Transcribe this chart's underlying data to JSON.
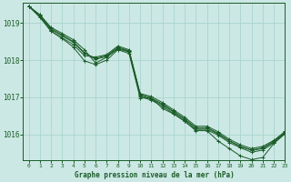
{
  "background_color": "#cce8e4",
  "grid_color": "#aad4ce",
  "line_color": "#1a5c28",
  "title": "Graphe pression niveau de la mer (hPa)",
  "xlim": [
    -0.5,
    23
  ],
  "ylim": [
    1015.3,
    1019.55
  ],
  "yticks": [
    1016,
    1017,
    1018,
    1019
  ],
  "xticks": [
    0,
    1,
    2,
    3,
    4,
    5,
    6,
    7,
    8,
    9,
    10,
    11,
    12,
    13,
    14,
    15,
    16,
    17,
    18,
    19,
    20,
    21,
    22,
    23
  ],
  "series": [
    [
      1019.45,
      1019.22,
      1018.88,
      1018.72,
      1018.55,
      1018.28,
      1017.92,
      1018.08,
      1018.3,
      1018.22,
      1017.02,
      1016.92,
      1016.76,
      1016.56,
      1016.36,
      1016.12,
      1016.12,
      1015.98,
      1015.78,
      1015.64,
      1015.52,
      1015.58,
      1015.77,
      1016.02
    ],
    [
      1019.45,
      1019.22,
      1018.85,
      1018.68,
      1018.5,
      1018.2,
      1018.02,
      1018.1,
      1018.32,
      1018.24,
      1017.05,
      1016.95,
      1016.8,
      1016.6,
      1016.4,
      1016.16,
      1016.16,
      1016.01,
      1015.82,
      1015.67,
      1015.57,
      1015.62,
      1015.8,
      1016.04
    ],
    [
      1019.45,
      1019.2,
      1018.82,
      1018.65,
      1018.48,
      1018.18,
      1018.05,
      1018.12,
      1018.35,
      1018.25,
      1017.08,
      1016.98,
      1016.82,
      1016.62,
      1016.42,
      1016.18,
      1016.18,
      1016.03,
      1015.83,
      1015.68,
      1015.58,
      1015.64,
      1015.82,
      1016.06
    ],
    [
      1019.45,
      1019.18,
      1018.78,
      1018.6,
      1018.42,
      1018.12,
      1018.08,
      1018.15,
      1018.38,
      1018.28,
      1017.1,
      1017.02,
      1016.86,
      1016.66,
      1016.46,
      1016.22,
      1016.22,
      1016.07,
      1015.87,
      1015.72,
      1015.62,
      1015.68,
      1015.84,
      1016.08
    ]
  ],
  "series_lone": [
    1019.45,
    1019.15,
    1018.78,
    1018.58,
    1018.35,
    1017.98,
    1017.88,
    1018.0,
    1018.28,
    1018.18,
    1016.98,
    1016.98,
    1016.7,
    1016.55,
    1016.35,
    1016.1,
    1016.1,
    1015.82,
    1015.62,
    1015.42,
    1015.32,
    1015.38,
    1015.76,
    1016.02
  ]
}
